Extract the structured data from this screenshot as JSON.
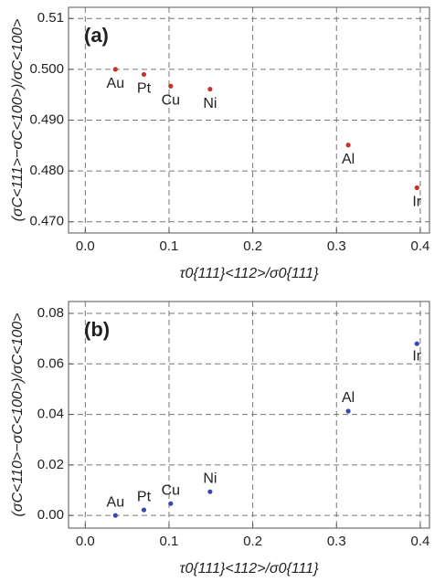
{
  "chart_data": [
    {
      "type": "scatter",
      "panel_label": "(a)",
      "x_label": "τ0{111}<112>/σ0{111}",
      "y_label": "(σC<111>−σC<100>)/σC<100>",
      "labels": [
        "Au",
        "Pt",
        "Cu",
        "Ni",
        "Al",
        "Ir"
      ],
      "x": [
        0.036,
        0.07,
        0.102,
        0.149,
        0.314,
        0.396
      ],
      "values": [
        0.5,
        0.499,
        0.4967,
        0.4961,
        0.4851,
        0.4767
      ],
      "color": "#c8322a",
      "xlim": [
        -0.02,
        0.411
      ],
      "ylim": [
        0.4678,
        0.5122
      ],
      "xticks": [
        {
          "value": 0,
          "label": "0.0"
        },
        0.1,
        0.2,
        0.3,
        0.4
      ],
      "yticks": [
        {
          "value": 0.47,
          "label": "0.470"
        },
        {
          "value": 0.48,
          "label": "0.480"
        },
        {
          "value": 0.49,
          "label": "0.490"
        },
        {
          "value": 0.5,
          "label": "0.500"
        },
        0.51
      ],
      "grid": true
    },
    {
      "type": "scatter",
      "panel_label": "(b)",
      "x_label": "τ0{111}<112>/σ0{111}",
      "y_label": "(σC<110>−σC<100>)/σC<100>",
      "labels": [
        "Au",
        "Pt",
        "Cu",
        "Ni",
        "Al",
        "Ir"
      ],
      "x": [
        0.036,
        0.07,
        0.102,
        0.149,
        0.314,
        0.396
      ],
      "values": [
        0.0,
        0.0022,
        0.0047,
        0.0094,
        0.0413,
        0.068
      ],
      "color": "#3a47b0",
      "xlim": [
        -0.02,
        0.411
      ],
      "ylim": [
        -0.005,
        0.0847
      ],
      "xticks": [
        {
          "value": 0,
          "label": "0.0"
        },
        0.1,
        0.2,
        0.3,
        0.4
      ],
      "yticks": [
        {
          "value": 0,
          "label": "0.00"
        },
        {
          "value": 0.02,
          "label": "0.02"
        },
        {
          "value": 0.04,
          "label": "0.04"
        },
        {
          "value": 0.06,
          "label": "0.06"
        },
        {
          "value": 0.08,
          "label": "0.08"
        }
      ],
      "grid": true
    }
  ]
}
